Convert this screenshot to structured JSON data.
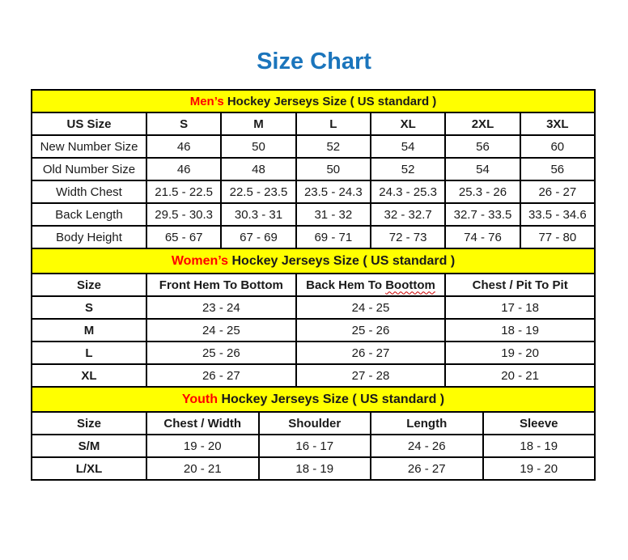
{
  "page": {
    "title": "Size Chart"
  },
  "colors": {
    "title_blue": "#1b75bc",
    "banner_yellow": "#ffff00",
    "highlight_red": "#ff0000",
    "border_black": "#000000"
  },
  "tables": {
    "men": {
      "banner": {
        "highlight": "Men’s",
        "rest": " Hockey Jerseys Size ( US standard )"
      },
      "columns": [
        "US Size",
        "S",
        "M",
        "L",
        "XL",
        "2XL",
        "3XL"
      ],
      "rows": [
        [
          "New Number Size",
          "46",
          "50",
          "52",
          "54",
          "56",
          "60"
        ],
        [
          "Old Number Size",
          "46",
          "48",
          "50",
          "52",
          "54",
          "56"
        ],
        [
          "Width Chest",
          "21.5 - 22.5",
          "22.5 - 23.5",
          "23.5 - 24.3",
          "24.3 - 25.3",
          "25.3 - 26",
          "26 - 27"
        ],
        [
          "Back Length",
          "29.5 - 30.3",
          "30.3 - 31",
          "31 - 32",
          "32 - 32.7",
          "32.7 - 33.5",
          "33.5 - 34.6"
        ],
        [
          "Body Height",
          "65 - 67",
          "67 - 69",
          "69 - 71",
          "72 - 73",
          "74 - 76",
          "77 - 80"
        ]
      ]
    },
    "women": {
      "banner": {
        "highlight": "Women’s",
        "rest": " Hockey Jerseys Size ( US standard )"
      },
      "columns": [
        "Size",
        "Front Hem To Bottom",
        {
          "text": "Back Hem To ",
          "misspelled": "Boottom"
        },
        "Chest / Pit To Pit"
      ],
      "rows": [
        [
          "S",
          "23 - 24",
          "24 - 25",
          "17 - 18"
        ],
        [
          "M",
          "24 - 25",
          "25 - 26",
          "18 - 19"
        ],
        [
          "L",
          "25 - 26",
          "26 - 27",
          "19 - 20"
        ],
        [
          "XL",
          "26 - 27",
          "27 - 28",
          "20 - 21"
        ]
      ]
    },
    "youth": {
      "banner": {
        "highlight": "Youth",
        "rest": " Hockey Jerseys Size ( US standard )"
      },
      "columns": [
        "Size",
        "Chest / Width",
        "Shoulder",
        "Length",
        "Sleeve"
      ],
      "rows": [
        [
          "S/M",
          "19 - 20",
          "16 - 17",
          "24 - 26",
          "18 - 19"
        ],
        [
          "L/XL",
          "20 - 21",
          "18 - 19",
          "26 - 27",
          "19 - 20"
        ]
      ]
    }
  }
}
